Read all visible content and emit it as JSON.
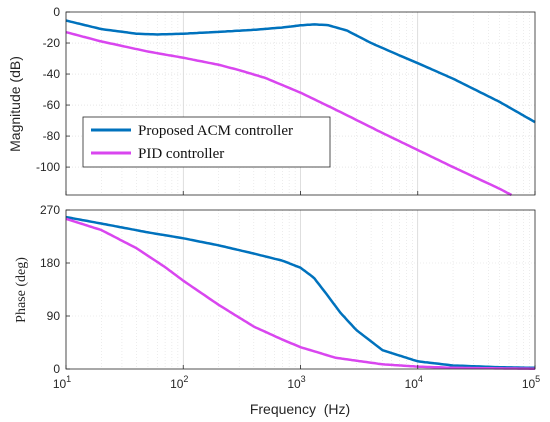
{
  "chart_data": [
    {
      "type": "line",
      "panel": "magnitude",
      "title": "",
      "xlabel": "",
      "ylabel": "Magnitude (dB)",
      "xscale": "log",
      "xlim": [
        10,
        100000
      ],
      "ylim": [
        -118,
        0
      ],
      "yticks": [
        0,
        -20,
        -40,
        -60,
        -80,
        -100
      ],
      "ytick_labels": [
        "0",
        "-20",
        "-40",
        "-60",
        "-80",
        "-100"
      ],
      "grid": true,
      "legend": "center-left",
      "series": [
        {
          "name": "Proposed ACM controller",
          "color": "#0072BD",
          "x": [
            10,
            20,
            40,
            60,
            100,
            200,
            400,
            700,
            1000,
            1300,
            1700,
            2500,
            4000,
            7000,
            10000,
            20000,
            50000,
            100000
          ],
          "values": [
            -5.5,
            -11,
            -14,
            -14.5,
            -14,
            -12.8,
            -11.5,
            -10,
            -8.6,
            -8,
            -8.4,
            -12,
            -20,
            -28,
            -33,
            -43,
            -58,
            -71
          ]
        },
        {
          "name": "PID controller",
          "color": "#D946EF",
          "x": [
            10,
            20,
            50,
            100,
            200,
            300,
            500,
            1000,
            2000,
            5000,
            10000,
            20000,
            50000,
            63000
          ],
          "values": [
            -13,
            -19,
            -25.5,
            -29.5,
            -34,
            -37.5,
            -42.5,
            -52,
            -63,
            -78,
            -89,
            -100,
            -114,
            -118
          ]
        }
      ]
    },
    {
      "type": "line",
      "panel": "phase",
      "title": "",
      "xlabel": "Frequency  (Hz)",
      "ylabel": "Phase (deg)",
      "xscale": "log",
      "xlim": [
        10,
        100000
      ],
      "ylim": [
        0,
        270
      ],
      "yticks": [
        0,
        90,
        180,
        270
      ],
      "ytick_labels": [
        "0",
        "90",
        "180",
        "270"
      ],
      "xtick_base": "10",
      "xtick_exponents": [
        "1",
        "2",
        "3",
        "4",
        "5"
      ],
      "grid": true,
      "series": [
        {
          "name": "Proposed ACM controller",
          "color": "#0072BD",
          "x": [
            10,
            20,
            50,
            100,
            200,
            400,
            700,
            1000,
            1300,
            1700,
            2200,
            3000,
            5000,
            10000,
            20000,
            50000,
            100000
          ],
          "values": [
            258,
            247,
            232,
            222,
            210,
            196,
            184,
            172,
            155,
            125,
            95,
            66,
            32,
            13,
            6,
            3,
            2
          ]
        },
        {
          "name": "PID controller",
          "color": "#D946EF",
          "x": [
            10,
            20,
            40,
            70,
            100,
            200,
            400,
            700,
            1000,
            2000,
            5000,
            10000,
            20000,
            50000,
            100000
          ],
          "values": [
            255,
            236,
            205,
            173,
            150,
            109,
            72,
            50,
            37,
            19,
            8,
            4,
            2,
            1,
            0.5
          ]
        }
      ]
    }
  ]
}
